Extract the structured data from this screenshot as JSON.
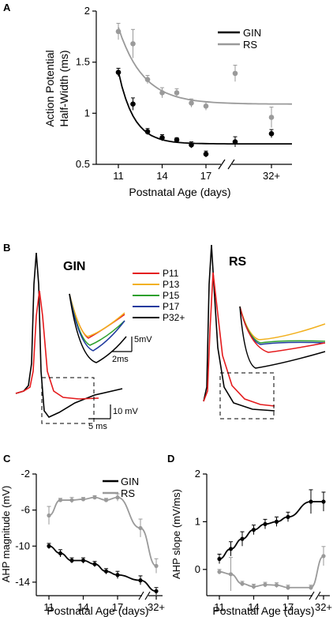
{
  "panels": {
    "a": "A",
    "b": "B",
    "c": "C",
    "d": "D"
  },
  "colors": {
    "gin": "#000000",
    "rs": "#9a9a9a"
  },
  "chart_data": [
    {
      "id": "A",
      "type": "scatter",
      "ylabel_line1": "Action Potential",
      "ylabel_line2": "Half-Width (ms)",
      "xlabel": "Postnatal Age (days)",
      "ylim": [
        0.5,
        2.0
      ],
      "yticks": [
        "0.5",
        "1",
        "1.5",
        "2"
      ],
      "yticks_v": [
        0.5,
        1.0,
        1.5,
        2.0
      ],
      "xticks": [
        "11",
        "14",
        "17",
        "32+"
      ],
      "xticks_v": [
        11,
        14,
        17,
        25
      ],
      "legend": [
        "GIN",
        "RS"
      ],
      "series": [
        {
          "name": "GIN",
          "x": [
            11,
            12,
            13,
            14,
            15,
            16,
            17,
            19,
            25
          ],
          "y": [
            1.4,
            1.09,
            0.82,
            0.76,
            0.74,
            0.69,
            0.6,
            0.72,
            0.8
          ],
          "err": [
            0.04,
            0.06,
            0.03,
            0.03,
            0.02,
            0.03,
            0.03,
            0.05,
            0.04
          ],
          "fit": {
            "base": 0.7,
            "amp": 0.71,
            "tau": 1.05
          }
        },
        {
          "name": "RS",
          "x": [
            11,
            12,
            13,
            14,
            15,
            16,
            17,
            19,
            25
          ],
          "y": [
            1.8,
            1.68,
            1.33,
            1.2,
            1.2,
            1.1,
            1.07,
            1.39,
            0.96
          ],
          "err": [
            0.08,
            0.14,
            0.04,
            0.05,
            0.04,
            0.04,
            0.04,
            0.08,
            0.1
          ],
          "fit": {
            "base": 1.09,
            "amp": 0.75,
            "tau": 1.7
          }
        }
      ]
    },
    {
      "id": "B",
      "type": "line",
      "cell_labels": [
        "GIN",
        "RS"
      ],
      "legend": [
        "P11",
        "P13",
        "P15",
        "P17",
        "P32+"
      ],
      "legend_colors": [
        "#e41a1c",
        "#f2b01e",
        "#2ca02c",
        "#1f3a9e",
        "#000000"
      ],
      "scale_inset": [
        "5mV",
        "2ms"
      ],
      "scale_main": [
        "10 mV",
        "5 ms"
      ]
    },
    {
      "id": "C",
      "type": "scatter",
      "ylabel": "AHP magnitude (mV)",
      "xlabel": "Postnatal Age (days)",
      "ylim": [
        -15.5,
        -2
      ],
      "yticks": [
        "-2",
        "-6",
        "-10",
        "-14"
      ],
      "yticks_v": [
        -2,
        -6,
        -10,
        -14
      ],
      "xticks": [
        "11",
        "14",
        "17",
        "32+"
      ],
      "xticks_v": [
        11,
        14,
        17,
        25
      ],
      "legend": [
        "GIN",
        "RS"
      ],
      "series": [
        {
          "name": "GIN",
          "x": [
            11,
            12,
            13,
            14,
            15,
            16,
            17,
            19,
            25
          ],
          "y": [
            -10.0,
            -10.8,
            -11.6,
            -11.6,
            -12.0,
            -12.8,
            -13.2,
            -13.8,
            -15.0
          ],
          "err": [
            0.3,
            0.4,
            0.3,
            0.3,
            0.3,
            0.3,
            0.4,
            0.5,
            0.4
          ]
        },
        {
          "name": "RS",
          "x": [
            11,
            12,
            13,
            14,
            15,
            16,
            17,
            19,
            25
          ],
          "y": [
            -6.6,
            -4.9,
            -4.9,
            -4.8,
            -4.6,
            -4.9,
            -4.6,
            -8.0,
            -12.2
          ],
          "err": [
            1.0,
            0.2,
            0.3,
            0.2,
            0.2,
            0.2,
            0.4,
            1.0,
            0.8
          ]
        }
      ]
    },
    {
      "id": "D",
      "type": "scatter",
      "ylabel": "AHP slope (mV/ms)",
      "xlabel": "Postnatal Age (days)",
      "ylim": [
        -0.55,
        2.0
      ],
      "yticks": [
        "0",
        "1",
        "2"
      ],
      "yticks_v": [
        0,
        1,
        2
      ],
      "xticks": [
        "11",
        "14",
        "17",
        "32+"
      ],
      "xticks_v": [
        11,
        14,
        17,
        25
      ],
      "series": [
        {
          "name": "GIN",
          "x": [
            11,
            12,
            13,
            14,
            15,
            16,
            17,
            19,
            25
          ],
          "y": [
            0.22,
            0.43,
            0.64,
            0.83,
            0.95,
            1.0,
            1.1,
            1.42,
            1.42
          ],
          "err": [
            0.1,
            0.15,
            0.15,
            0.1,
            0.1,
            0.1,
            0.1,
            0.25,
            0.2
          ]
        },
        {
          "name": "RS",
          "x": [
            11,
            12,
            13,
            14,
            15,
            16,
            17,
            19,
            25
          ],
          "y": [
            -0.05,
            -0.1,
            -0.3,
            -0.36,
            -0.32,
            -0.33,
            -0.38,
            -0.38,
            0.28
          ],
          "err": [
            0.05,
            0.35,
            0.05,
            0.05,
            0.05,
            0.05,
            0.05,
            0.05,
            0.2
          ]
        }
      ]
    }
  ]
}
